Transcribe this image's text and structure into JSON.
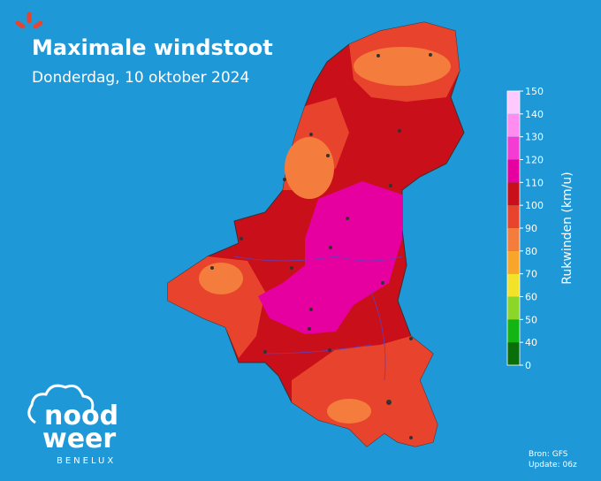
{
  "header": {
    "title": "Maximale windstoot",
    "subtitle": "Donderdag, 10 oktober 2024"
  },
  "legend": {
    "title": "Rukwinden (km/u)",
    "ticks": [
      0,
      40,
      50,
      60,
      70,
      80,
      90,
      100,
      110,
      120,
      130,
      140,
      150
    ],
    "colors": [
      "#0a6e0a",
      "#13b513",
      "#8cd62a",
      "#f2e22a",
      "#f9a52a",
      "#f47c3c",
      "#e8432d",
      "#c80f1a",
      "#e600a0",
      "#f23cd2",
      "#ff8cf0",
      "#ffc8ff"
    ]
  },
  "logo": {
    "line1": "nood",
    "line2": "weer",
    "tagline": "BENELUX"
  },
  "footer": {
    "source": "Bron: GFS",
    "update": "Update: 06z"
  }
}
